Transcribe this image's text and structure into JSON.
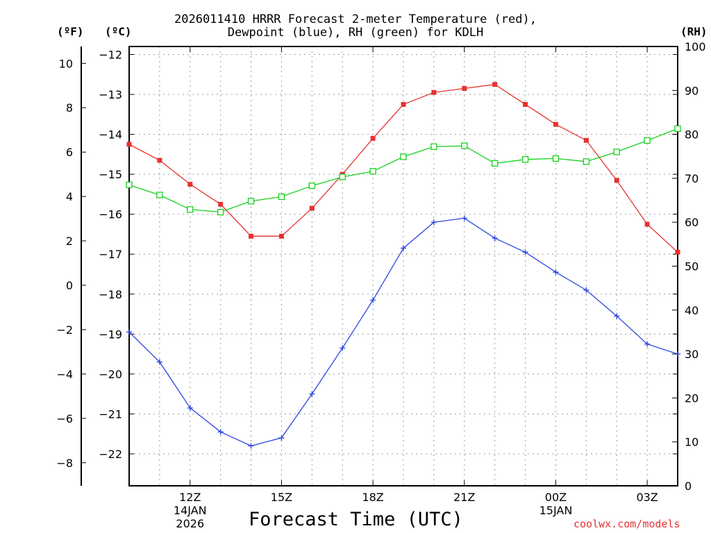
{
  "chart_data": {
    "type": "line",
    "title_line1": "2026011410 HRRR Forecast 2-meter Temperature (red),",
    "title_line2": "Dewpoint (blue), RH (green) for KDLH",
    "xlabel": "Forecast Time (UTC)",
    "credit": "coolwx.com/models",
    "units": {
      "fahrenheit": "(ºF)",
      "celsius": "(ºC)",
      "rh": "(RH)"
    },
    "x_hours": [
      10,
      11,
      12,
      13,
      14,
      15,
      16,
      17,
      18,
      19,
      20,
      21,
      22,
      23,
      24,
      25,
      26,
      27,
      28
    ],
    "xlim": [
      10,
      28
    ],
    "x_ticks": [
      {
        "hour": 12,
        "label": "12Z",
        "date1": "14JAN",
        "date2": "2026"
      },
      {
        "hour": 15,
        "label": "15Z",
        "date1": "",
        "date2": ""
      },
      {
        "hour": 18,
        "label": "18Z",
        "date1": "",
        "date2": ""
      },
      {
        "hour": 21,
        "label": "21Z",
        "date1": "",
        "date2": ""
      },
      {
        "hour": 24,
        "label": "00Z",
        "date1": "15JAN",
        "date2": ""
      },
      {
        "hour": 27,
        "label": "03Z",
        "date1": "",
        "date2": ""
      }
    ],
    "celsius_axis": {
      "ylim": [
        -22.8,
        -11.8
      ],
      "ticks": [
        -12,
        -13,
        -14,
        -15,
        -16,
        -17,
        -18,
        -19,
        -20,
        -21,
        -22
      ]
    },
    "fahrenheit_axis": {
      "ylim": [
        -9.04,
        10.76
      ],
      "ticks": [
        10,
        8,
        6,
        4,
        2,
        0,
        -2,
        -4,
        -6,
        -8
      ]
    },
    "rh_axis": {
      "ylim": [
        0,
        100
      ],
      "ticks": [
        100,
        90,
        80,
        70,
        60,
        50,
        40,
        30,
        20,
        10,
        0
      ]
    },
    "grid": true,
    "series": [
      {
        "name": "2-meter Temperature",
        "axis": "celsius",
        "color": "#e8312f",
        "marker": "filled-square",
        "values": [
          -14.25,
          -14.65,
          -15.25,
          -15.75,
          -16.55,
          -16.55,
          -15.85,
          -15.0,
          -14.1,
          -13.25,
          -12.95,
          -12.85,
          -12.75,
          -13.25,
          -13.75,
          -14.15,
          -15.15,
          -16.25,
          -16.95
        ]
      },
      {
        "name": "Dewpoint",
        "axis": "celsius",
        "color": "#2b46e0",
        "marker": "plus",
        "values": [
          -18.95,
          -19.7,
          -20.85,
          -21.45,
          -21.8,
          -21.6,
          -20.5,
          -19.35,
          -18.15,
          -16.85,
          -16.2,
          -16.1,
          -16.6,
          -16.95,
          -17.45,
          -17.9,
          -18.55,
          -19.25,
          -19.5
        ]
      },
      {
        "name": "RH",
        "axis": "rh",
        "color": "#16d11a",
        "marker": "open-square",
        "values": [
          68.5,
          66.2,
          62.9,
          62.3,
          64.8,
          65.8,
          68.3,
          70.3,
          71.6,
          74.9,
          77.2,
          77.4,
          73.4,
          74.3,
          74.5,
          73.8,
          76.0,
          78.6,
          81.3
        ]
      }
    ]
  }
}
